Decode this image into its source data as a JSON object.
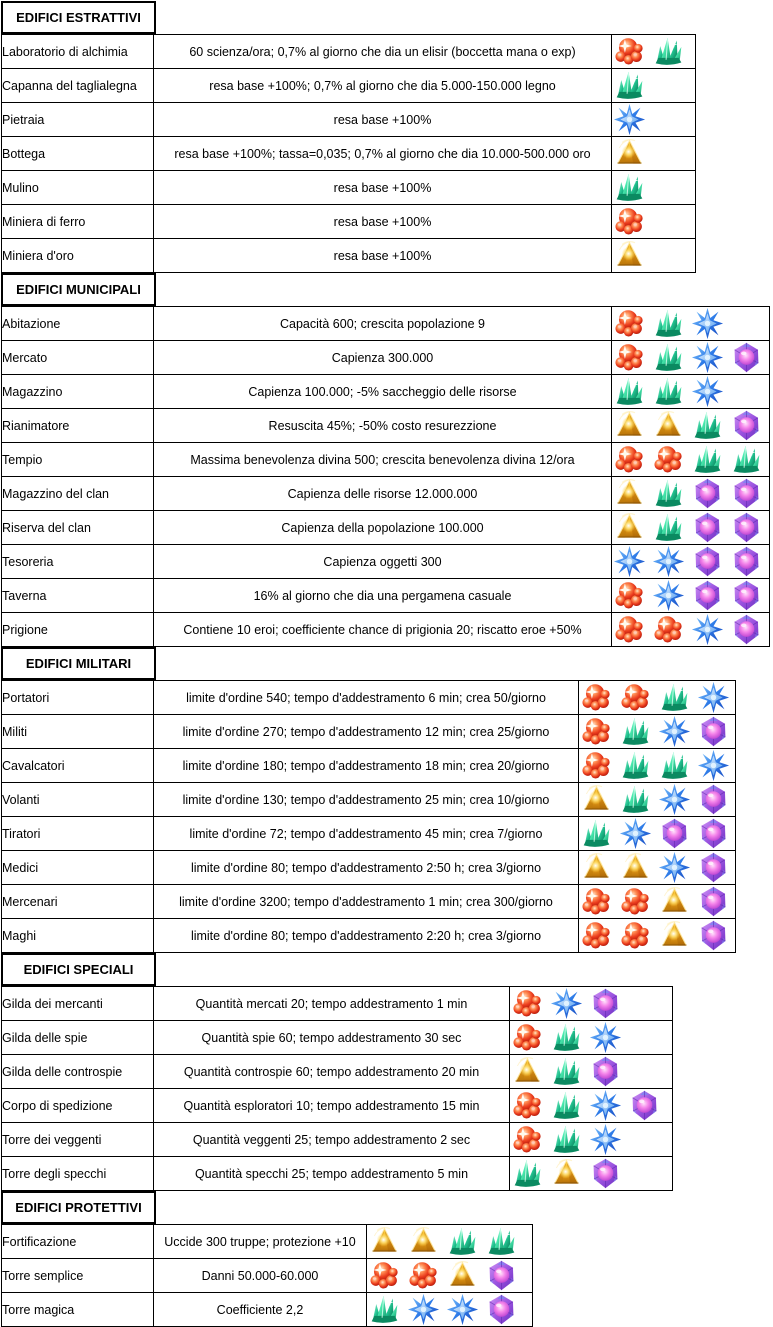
{
  "page": {
    "background": "#ffffff",
    "border_color": "#000000"
  },
  "gem_colors": {
    "red": "#e9391f",
    "green": "#2ed3a3",
    "blue": "#3c8cf0",
    "gold": "#f2a818",
    "purple": "#c85ee8"
  },
  "sections": [
    {
      "title": "EDIFICI ESTRATTIVI",
      "rows": [
        {
          "name": "Laboratorio di alchimia",
          "description": "60 scienza/ora; 0,7% al giorno che dia un elisir (boccetta mana o exp)",
          "gems": [
            "red",
            "green"
          ]
        },
        {
          "name": "Capanna del taglialegna",
          "description": "resa base +100%; 0,7% al giorno che dia 5.000-150.000 legno",
          "gems": [
            "green"
          ]
        },
        {
          "name": "Pietraia",
          "description": "resa base +100%",
          "gems": [
            "blue"
          ]
        },
        {
          "name": "Bottega",
          "description": "resa base +100%; tassa=0,035; 0,7% al giorno che dia 10.000-500.000 oro",
          "gems": [
            "gold"
          ]
        },
        {
          "name": "Mulino",
          "description": "resa base +100%",
          "gems": [
            "green"
          ]
        },
        {
          "name": "Miniera di ferro",
          "description": "resa base +100%",
          "gems": [
            "red"
          ]
        },
        {
          "name": "Miniera d'oro",
          "description": "resa base +100%",
          "gems": [
            "gold"
          ]
        }
      ]
    },
    {
      "title": "EDIFICI MUNICIPALI",
      "rows": [
        {
          "name": "Abitazione",
          "description": "Capacità 600; crescita popolazione 9",
          "gems": [
            "red",
            "green",
            "blue"
          ]
        },
        {
          "name": "Mercato",
          "description": "Capienza 300.000",
          "gems": [
            "red",
            "green",
            "blue",
            "purple"
          ]
        },
        {
          "name": "Magazzino",
          "description": "Capienza 100.000; -5% saccheggio delle risorse",
          "gems": [
            "green",
            "green",
            "blue"
          ]
        },
        {
          "name": "Rianimatore",
          "description": "Resuscita 45%; -50% costo resurezzione",
          "gems": [
            "gold",
            "gold",
            "green",
            "purple"
          ]
        },
        {
          "name": "Tempio",
          "description": "Massima benevolenza divina 500; crescita benevolenza divina 12/ora",
          "gems": [
            "red",
            "red",
            "green",
            "green"
          ]
        },
        {
          "name": "Magazzino del clan",
          "description": "Capienza delle risorse 12.000.000",
          "gems": [
            "gold",
            "green",
            "purple",
            "purple"
          ]
        },
        {
          "name": "Riserva del clan",
          "description": "Capienza della popolazione 100.000",
          "gems": [
            "gold",
            "green",
            "purple",
            "purple"
          ]
        },
        {
          "name": "Tesoreria",
          "description": "Capienza oggetti 300",
          "gems": [
            "blue",
            "blue",
            "purple",
            "purple"
          ]
        },
        {
          "name": "Taverna",
          "description": "16% al giorno che dia una pergamena casuale",
          "gems": [
            "red",
            "blue",
            "purple",
            "purple"
          ]
        },
        {
          "name": "Prigione",
          "description": "Contiene 10 eroi; coefficiente chance di prigionia 20; riscatto eroe +50%",
          "gems": [
            "red",
            "red",
            "blue",
            "purple"
          ]
        }
      ]
    },
    {
      "title": "EDIFICI MILITARI",
      "rows": [
        {
          "name": "Portatori",
          "description": "limite d'ordine 540; tempo d'addestramento 6 min; crea 50/giorno",
          "gems": [
            "red",
            "red",
            "green",
            "blue"
          ]
        },
        {
          "name": "Militi",
          "description": "limite d'ordine 270;  tempo d'addestramento 12 min; crea 25/giorno",
          "gems": [
            "red",
            "green",
            "blue",
            "purple"
          ]
        },
        {
          "name": "Cavalcatori",
          "description": "limite d'ordine 180;  tempo d'addestramento 18 min; crea 20/giorno",
          "gems": [
            "red",
            "green",
            "green",
            "blue"
          ]
        },
        {
          "name": "Volanti",
          "description": "limite d'ordine 130;  tempo d'addestramento 25 min; crea 10/giorno",
          "gems": [
            "gold",
            "green",
            "blue",
            "purple"
          ]
        },
        {
          "name": "Tiratori",
          "description": "limite d'ordine 72;  tempo d'addestramento 45 min; crea 7/giorno",
          "gems": [
            "green",
            "blue",
            "purple",
            "purple"
          ]
        },
        {
          "name": "Medici",
          "description": "limite d'ordine 80;  tempo d'addestramento 2:50 h; crea 3/giorno",
          "gems": [
            "gold",
            "gold",
            "blue",
            "purple"
          ]
        },
        {
          "name": "Mercenari",
          "description": "limite d'ordine 3200; tempo d'addestramento 1 min; crea 300/giorno",
          "gems": [
            "red",
            "red",
            "gold",
            "purple"
          ]
        },
        {
          "name": "Maghi",
          "description": "limite d'ordine 80;  tempo d'addestramento 2:20 h; crea 3/giorno",
          "gems": [
            "red",
            "red",
            "gold",
            "purple"
          ]
        }
      ]
    },
    {
      "title": "EDIFICI SPECIALI",
      "rows": [
        {
          "name": "Gilda dei mercanti",
          "description": "Quantità mercati 20; tempo addestramento 1 min",
          "gems": [
            "red",
            "blue",
            "purple"
          ]
        },
        {
          "name": "Gilda delle spie",
          "description": "Quantità spie 60; tempo addestramento 30 sec",
          "gems": [
            "red",
            "green",
            "blue"
          ]
        },
        {
          "name": "Gilda delle controspie",
          "description": "Quantità controspie 60; tempo addestramento 20 min",
          "gems": [
            "gold",
            "green",
            "purple"
          ]
        },
        {
          "name": "Corpo di spedizione",
          "description": "Quantità esploratori 10; tempo addestramento 15 min",
          "gems": [
            "red",
            "green",
            "blue",
            "purple"
          ]
        },
        {
          "name": "Torre dei veggenti",
          "description": "Quantità veggenti 25; tempo addestramento 2 sec",
          "gems": [
            "red",
            "green",
            "blue"
          ]
        },
        {
          "name": "Torre degli specchi",
          "description": "Quantità specchi 25; tempo addestramento 5 min",
          "gems": [
            "green",
            "gold",
            "purple"
          ]
        }
      ]
    },
    {
      "title": "EDIFICI PROTETTIVI",
      "rows": [
        {
          "name": "Fortificazione",
          "description": "Uccide 300 truppe; protezione +10",
          "gems": [
            "gold",
            "gold",
            "green",
            "green"
          ]
        },
        {
          "name": "Torre semplice",
          "description": "Danni 50.000-60.000",
          "gems": [
            "red",
            "red",
            "gold",
            "purple"
          ]
        },
        {
          "name": "Torre magica",
          "description": "Coefficiente 2,2",
          "gems": [
            "green",
            "blue",
            "blue",
            "purple"
          ]
        }
      ]
    }
  ]
}
